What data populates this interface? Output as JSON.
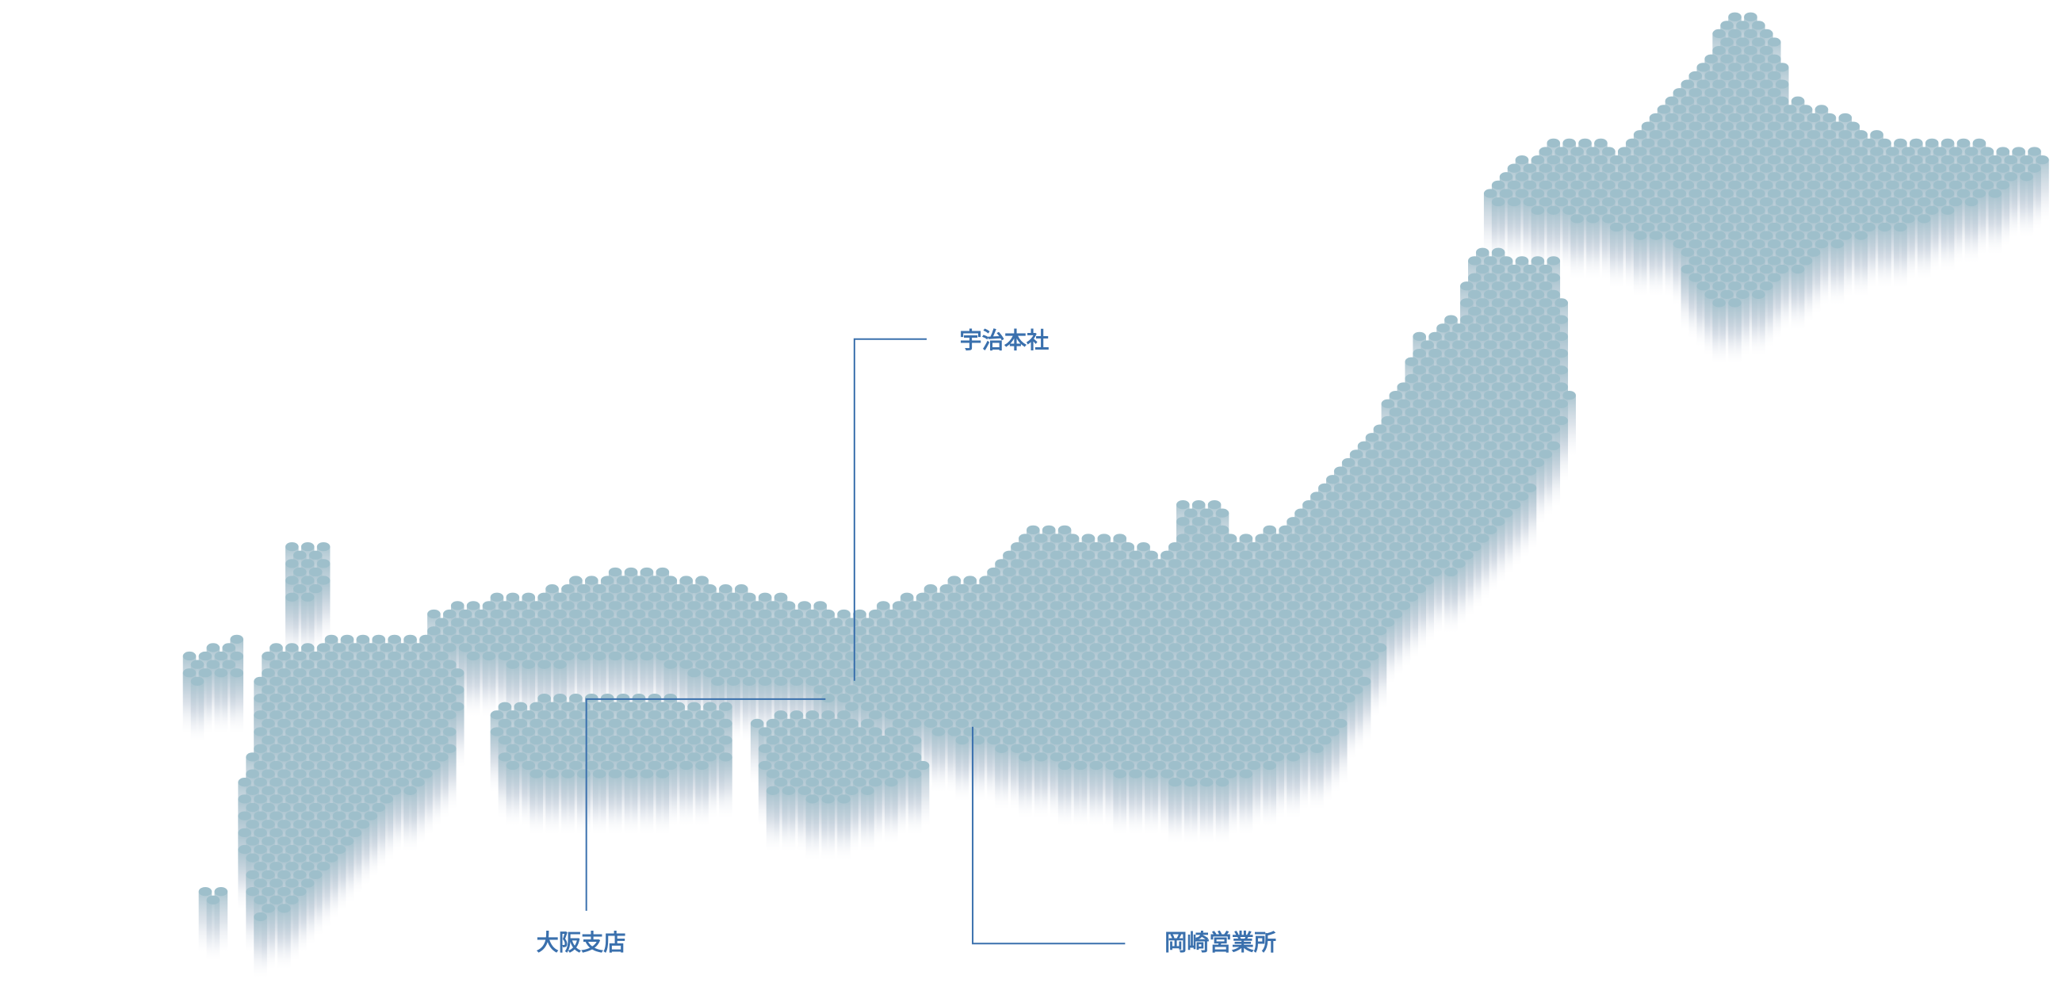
{
  "locations": [
    {
      "name": "宇治本社"
    },
    {
      "name": "大阪支店"
    },
    {
      "name": "岡崎営業所"
    }
  ]
}
